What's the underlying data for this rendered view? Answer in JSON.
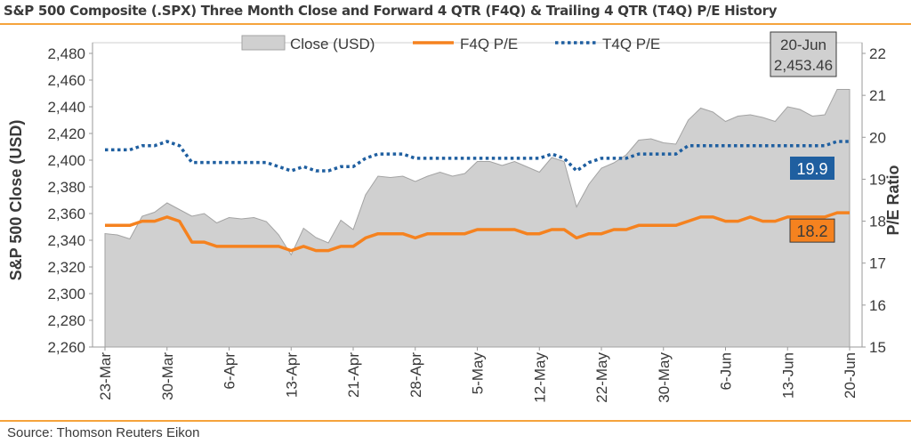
{
  "title": "S&P 500 Composite (.SPX) Three Month Close and Forward 4 QTR (F4Q) & Trailing 4 QTR (T4Q) P/E History",
  "source": "Source: Thomson Reuters Eikon",
  "colors": {
    "area_fill": "#d0d0d0",
    "area_stroke": "#a3a3a3",
    "f4q": "#f5821f",
    "t4q": "#1f5fa0",
    "t4q_badge": "#1f5fa0",
    "f4q_badge": "#f5821f",
    "rule": "#f5a33c"
  },
  "chart_data": {
    "type": "area",
    "ylabel": "S&P 500 Close (USD)",
    "y2label": "P/E Ratio",
    "ylim": [
      2260,
      2480
    ],
    "y2lim": [
      15,
      22
    ],
    "yticks": [
      "2,260",
      "2,280",
      "2,300",
      "2,320",
      "2,340",
      "2,360",
      "2,380",
      "2,400",
      "2,420",
      "2,440",
      "2,460",
      "2,480"
    ],
    "y2ticks": [
      "15",
      "16",
      "17",
      "18",
      "19",
      "20",
      "21",
      "22"
    ],
    "x_tick_labels": [
      "23-Mar",
      "30-Mar",
      "6-Apr",
      "13-Apr",
      "21-Apr",
      "28-Apr",
      "5-May",
      "12-May",
      "22-May",
      "30-May",
      "6-Jun",
      "13-Jun",
      "20-Jun"
    ],
    "x_tick_index": [
      0,
      5,
      10,
      15,
      20,
      25,
      30,
      35,
      40,
      45,
      50,
      55,
      60
    ],
    "legend": [
      "Close (USD)",
      "F4Q P/E",
      "T4Q P/E"
    ],
    "legend_position": "top",
    "series": [
      {
        "name": "Close (USD)",
        "axis": "left",
        "style": "area",
        "values": [
          2345,
          2344,
          2341,
          2358,
          2361,
          2368,
          2363,
          2358,
          2360,
          2353,
          2357,
          2356,
          2357,
          2354,
          2344,
          2329,
          2349,
          2342,
          2338,
          2355,
          2348,
          2374,
          2388,
          2387,
          2388,
          2384,
          2388,
          2391,
          2388,
          2390,
          2399,
          2399,
          2396,
          2399,
          2395,
          2391,
          2402,
          2399,
          2365,
          2382,
          2394,
          2398,
          2404,
          2415,
          2416,
          2413,
          2412,
          2430,
          2439,
          2436,
          2429,
          2433,
          2434,
          2432,
          2429,
          2440,
          2438,
          2433,
          2434,
          2453,
          2453
        ]
      },
      {
        "name": "F4Q P/E",
        "axis": "right",
        "style": "line",
        "values": [
          17.9,
          17.9,
          17.9,
          18.0,
          18.0,
          18.1,
          18.0,
          17.5,
          17.5,
          17.4,
          17.4,
          17.4,
          17.4,
          17.4,
          17.4,
          17.3,
          17.4,
          17.3,
          17.3,
          17.4,
          17.4,
          17.6,
          17.7,
          17.7,
          17.7,
          17.6,
          17.7,
          17.7,
          17.7,
          17.7,
          17.8,
          17.8,
          17.8,
          17.8,
          17.7,
          17.7,
          17.8,
          17.8,
          17.6,
          17.7,
          17.7,
          17.8,
          17.8,
          17.9,
          17.9,
          17.9,
          17.9,
          18.0,
          18.1,
          18.1,
          18.0,
          18.0,
          18.1,
          18.0,
          18.0,
          18.1,
          18.1,
          18.1,
          18.1,
          18.2,
          18.2
        ]
      },
      {
        "name": "T4Q P/E",
        "axis": "right",
        "style": "dotted",
        "values": [
          19.7,
          19.7,
          19.7,
          19.8,
          19.8,
          19.9,
          19.8,
          19.4,
          19.4,
          19.4,
          19.4,
          19.4,
          19.4,
          19.4,
          19.3,
          19.2,
          19.3,
          19.2,
          19.2,
          19.3,
          19.3,
          19.5,
          19.6,
          19.6,
          19.6,
          19.5,
          19.5,
          19.5,
          19.5,
          19.5,
          19.5,
          19.5,
          19.5,
          19.5,
          19.5,
          19.5,
          19.6,
          19.5,
          19.2,
          19.4,
          19.5,
          19.5,
          19.5,
          19.6,
          19.6,
          19.6,
          19.6,
          19.8,
          19.8,
          19.8,
          19.8,
          19.8,
          19.8,
          19.8,
          19.8,
          19.8,
          19.8,
          19.8,
          19.8,
          19.9,
          19.9
        ]
      }
    ],
    "annotations": [
      {
        "id": "last-close",
        "line1": "20-Jun",
        "line2": "2,453.46"
      },
      {
        "id": "t4q-last",
        "text": "19.9",
        "value": 19.9
      },
      {
        "id": "f4q-last",
        "text": "18.2",
        "value": 18.2
      }
    ]
  }
}
